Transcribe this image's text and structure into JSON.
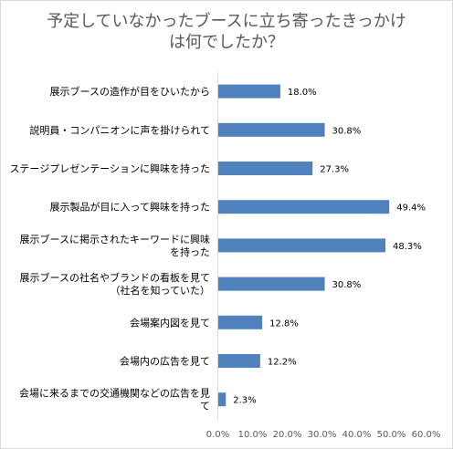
{
  "chart_data": {
    "type": "bar",
    "orientation": "horizontal",
    "title_lines": [
      "予定していなかったブースに立ち寄ったきっかけ",
      "は何でしたか？"
    ],
    "categories": [
      [
        "展示ブースの造作が目をひいたから"
      ],
      [
        "説明員・コンパニオンに声を掛けられて"
      ],
      [
        "ステージプレゼンテーションに興味を持った"
      ],
      [
        "展示製品が目に入って興味を持った"
      ],
      [
        "展示ブースに掲示されたキーワードに興味",
        "を持った"
      ],
      [
        "展示ブースの社名やブランドの看板を見て",
        "（社名を知っていた）"
      ],
      [
        "会場案内図を見て"
      ],
      [
        "会場内の広告を見て"
      ],
      [
        "会場に来るまでの交通機関などの広告を見",
        "て"
      ]
    ],
    "values": [
      18.0,
      30.8,
      27.3,
      49.4,
      48.3,
      30.8,
      12.8,
      12.2,
      2.3
    ],
    "value_labels": [
      "18.0%",
      "30.8%",
      "27.3%",
      "49.4%",
      "48.3%",
      "30.8%",
      "12.8%",
      "12.2%",
      "2.3%"
    ],
    "x_ticks": [
      "0.0%",
      "10.0%",
      "20.0%",
      "30.0%",
      "40.0%",
      "50.0%",
      "60.0%"
    ],
    "xlim": [
      0,
      60
    ],
    "bar_color": "#4f81bd",
    "grid": false,
    "legend": "none"
  }
}
